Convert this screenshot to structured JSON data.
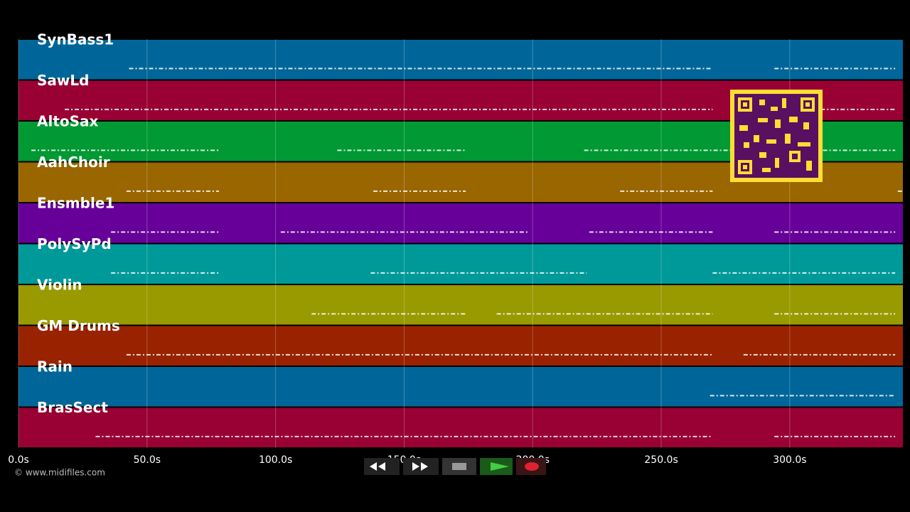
{
  "chart_data": {
    "type": "timeline",
    "xlim": [
      0,
      344
    ],
    "xticks": [
      {
        "value": 0,
        "label": "0.0s"
      },
      {
        "value": 50,
        "label": "50.0s"
      },
      {
        "value": 100,
        "label": "100.0s"
      },
      {
        "value": 150,
        "label": "150.0s"
      },
      {
        "value": 200,
        "label": "200.0s"
      },
      {
        "value": 250,
        "label": "250.0s"
      },
      {
        "value": 300,
        "label": "300.0s"
      }
    ],
    "grid": true,
    "series": [
      {
        "name": "SynBass1",
        "color": "#006699",
        "values": [
          [
            43,
            270
          ],
          [
            294,
            341
          ]
        ]
      },
      {
        "name": "SawLd",
        "color": "#990033",
        "values": [
          [
            18,
            270
          ],
          [
            312,
            341
          ]
        ]
      },
      {
        "name": "AltoSax",
        "color": "#009933",
        "values": [
          [
            5,
            78
          ],
          [
            124,
            174
          ],
          [
            220,
            341
          ]
        ]
      },
      {
        "name": "AahChoir",
        "color": "#996600",
        "values": [
          [
            42,
            78
          ],
          [
            138,
            174
          ],
          [
            234,
            270
          ],
          [
            342,
            344
          ]
        ]
      },
      {
        "name": "Ensmble1",
        "color": "#660099",
        "values": [
          [
            36,
            78
          ],
          [
            102,
            198
          ],
          [
            222,
            270
          ],
          [
            294,
            341
          ]
        ]
      },
      {
        "name": "PolySyPd",
        "color": "#009999",
        "values": [
          [
            36,
            78
          ],
          [
            137,
            221
          ],
          [
            270,
            341
          ]
        ]
      },
      {
        "name": "Violin",
        "color": "#999900",
        "values": [
          [
            114,
            174
          ],
          [
            186,
            270
          ],
          [
            294,
            341
          ]
        ]
      },
      {
        "name": "GM Drums",
        "color": "#992200",
        "values": [
          [
            42,
            270
          ],
          [
            282,
            341
          ]
        ]
      },
      {
        "name": "Rain",
        "color": "#006699",
        "values": [
          [
            269,
            341
          ]
        ]
      },
      {
        "name": "BrasSect",
        "color": "#990033",
        "values": [
          [
            30,
            270
          ],
          [
            294,
            341
          ]
        ]
      }
    ]
  },
  "footer": {
    "copyright": "© www.midifiles.com"
  }
}
